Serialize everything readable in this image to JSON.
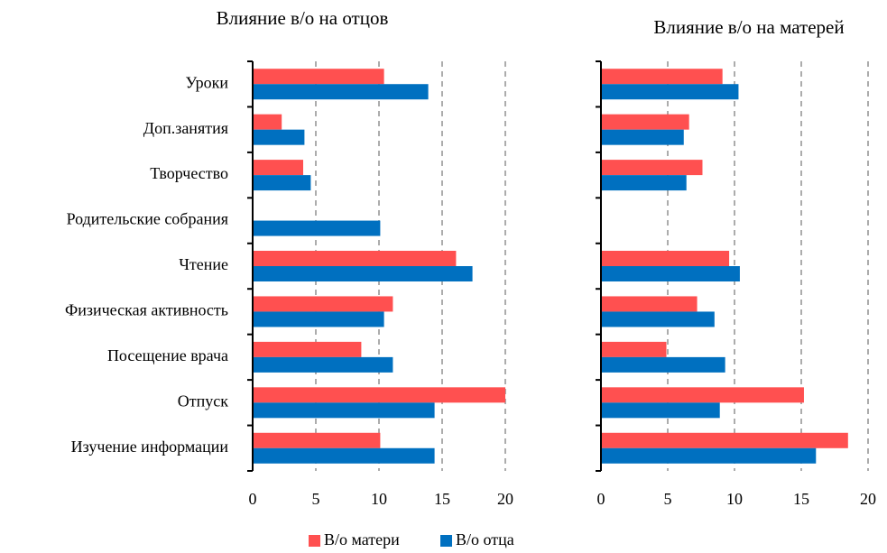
{
  "chart_data": [
    {
      "type": "hbar",
      "title": "Влияние в/о на отцов",
      "categories": [
        "Уроки",
        "Доп.занятия",
        "Творчество",
        "Родительские собрания",
        "Чтение",
        "Физическая активность",
        "Посещение врача",
        "Отпуск",
        "Изучение информации"
      ],
      "series": [
        {
          "name": "В/о матери",
          "color": "#ff5050",
          "values": [
            10.4,
            2.3,
            4.0,
            0,
            16.1,
            11.1,
            8.6,
            20.0,
            10.1
          ]
        },
        {
          "name": "В/о отца",
          "color": "#0070c0",
          "values": [
            13.9,
            4.1,
            4.6,
            10.1,
            17.4,
            10.4,
            11.1,
            14.4,
            14.4
          ]
        }
      ],
      "xlim": [
        0,
        20
      ],
      "xticks": [
        0,
        5,
        10,
        15,
        20
      ],
      "grid": true,
      "legend": "bottom"
    },
    {
      "type": "hbar",
      "title": "Влияние в/о на матерей",
      "series": [
        {
          "color": "#ff5050",
          "values": [
            9.1,
            6.6,
            7.6,
            0,
            9.6,
            7.2,
            4.9,
            15.2,
            18.5
          ]
        },
        {
          "color": "#0070c0",
          "values": [
            10.3,
            6.2,
            6.4,
            0,
            10.4,
            8.5,
            9.3,
            8.9,
            16.1
          ]
        }
      ],
      "xlim": [
        0,
        20
      ],
      "xticks": [
        0,
        5,
        10,
        15,
        20
      ],
      "grid": true
    }
  ]
}
